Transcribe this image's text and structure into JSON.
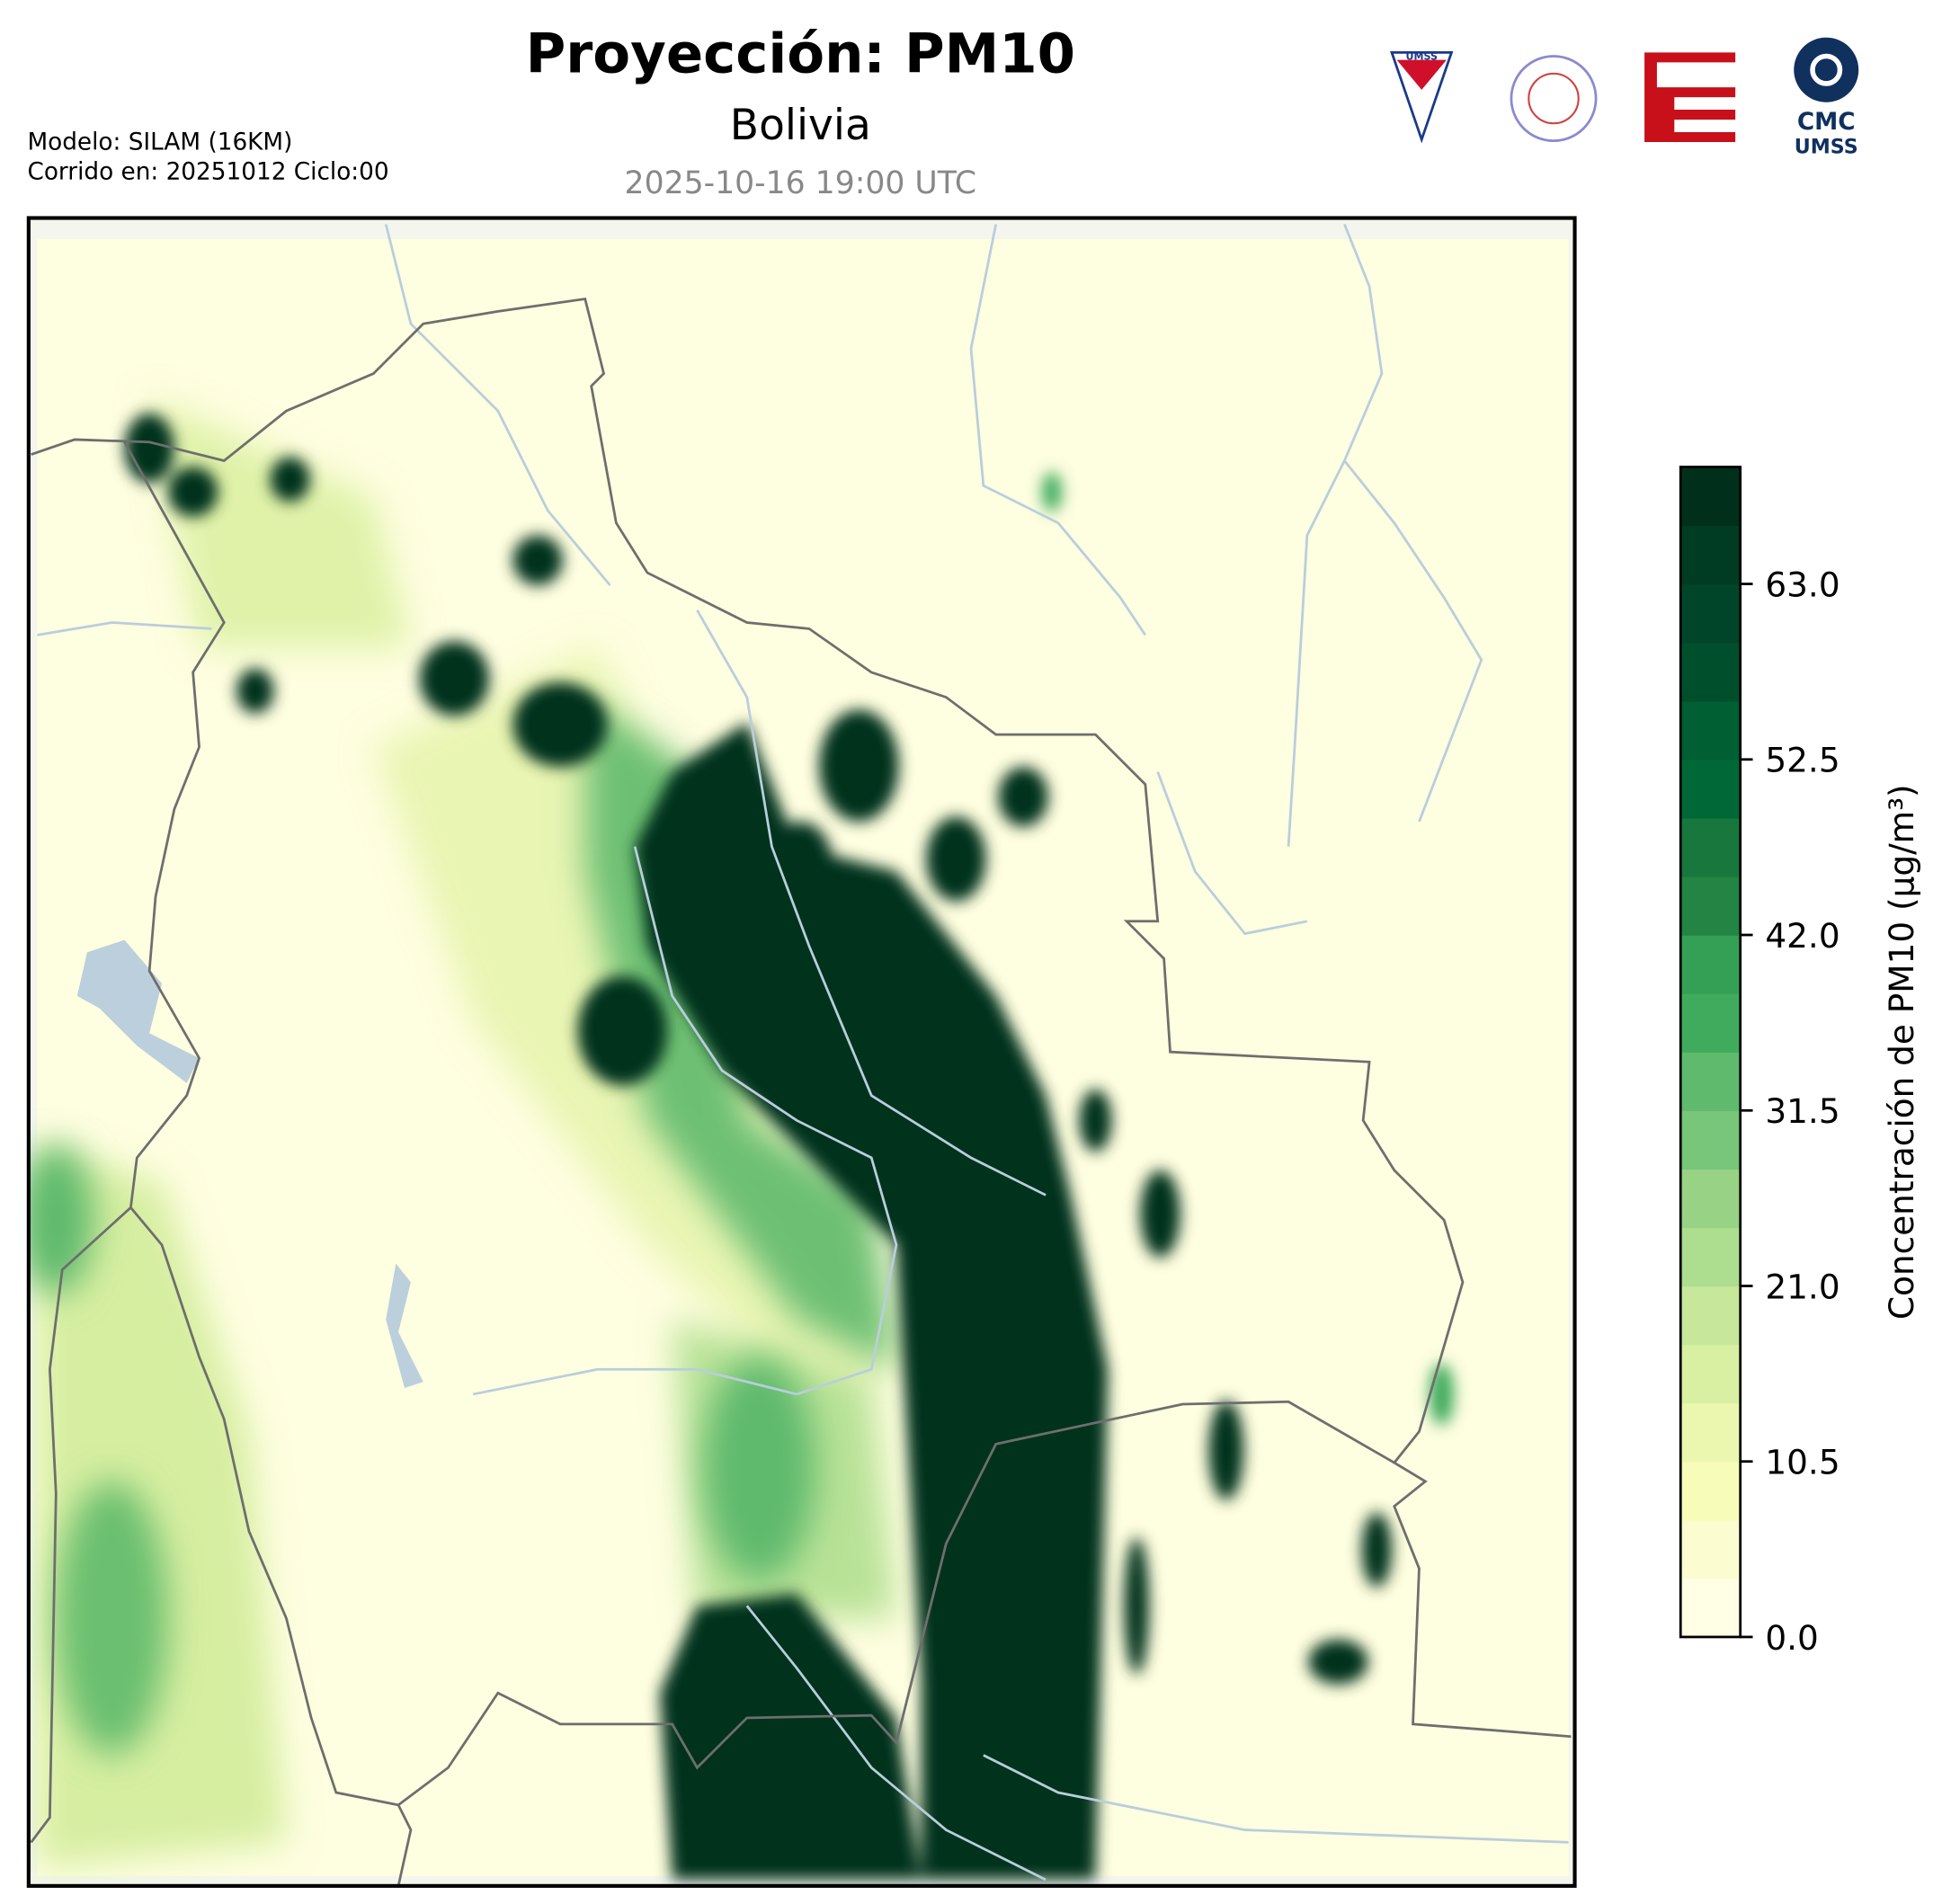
{
  "header": {
    "title": "Proyección: PM10",
    "region": "Bolivia",
    "valid_time": "2025-10-16 19:00 UTC",
    "model": "Modelo: SILAM (16KM)",
    "run": "Corrido en: 20251012 Ciclo:00"
  },
  "logos": {
    "shield": "UMSS",
    "cmc_top": "CMC",
    "cmc_bottom": "UMSS"
  },
  "colorbar": {
    "label": "Concentración de PM10 (µg/m³)",
    "clim": [
      0,
      70
    ],
    "ticks": [
      {
        "value": 0,
        "label": "0.0"
      },
      10.5,
      {
        "value": 21,
        "label": "21.0"
      },
      31.5,
      {
        "value": 42,
        "label": "42.0"
      },
      52.5,
      {
        "value": 63,
        "label": "63.0"
      }
    ],
    "colors": [
      "#ffffe5",
      "#fbfdd0",
      "#f7fcb9",
      "#ebf7af",
      "#d9f0a3",
      "#c7e89b",
      "#addd8e",
      "#98d385",
      "#78c679",
      "#5fba6d",
      "#41ab5d",
      "#34a055",
      "#238443",
      "#18773c",
      "#006837",
      "#005f33",
      "#004f2c",
      "#004529",
      "#003b23",
      "#00301c"
    ]
  }
}
